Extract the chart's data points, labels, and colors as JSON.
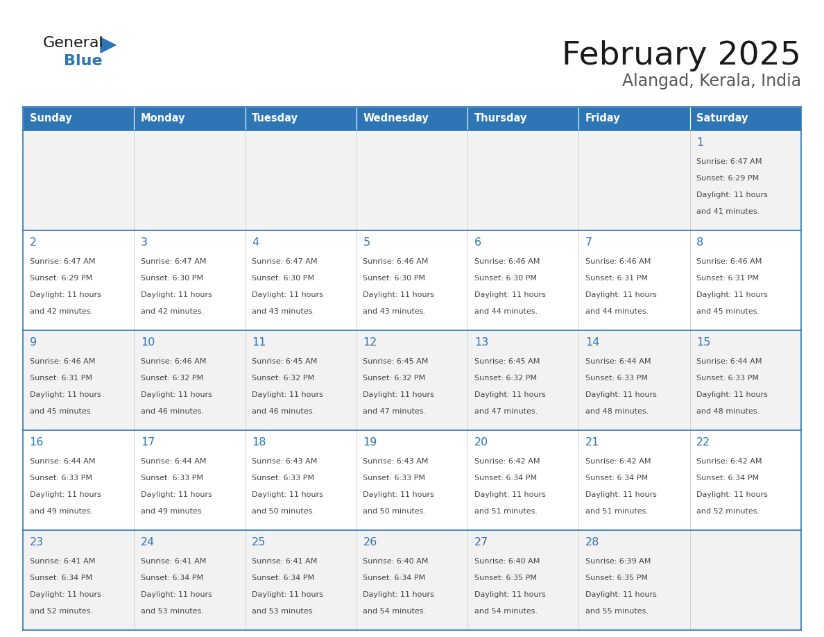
{
  "title": "February 2025",
  "subtitle": "Alangad, Kerala, India",
  "header_bg": "#2E75B6",
  "header_text_color": "#FFFFFF",
  "header_font_size": 10.5,
  "day_names": [
    "Sunday",
    "Monday",
    "Tuesday",
    "Wednesday",
    "Thursday",
    "Friday",
    "Saturday"
  ],
  "title_font_size": 34,
  "subtitle_font_size": 17,
  "cell_bg_odd": "#F2F2F2",
  "cell_bg_even": "#FFFFFF",
  "border_color": "#2E75B6",
  "day_num_color": "#2E75B6",
  "text_color": "#444444",
  "logo_text1_color": "#1a1a1a",
  "logo_text2_color": "#2E75B6",
  "days": [
    {
      "date": 1,
      "col": 6,
      "row": 0,
      "sunrise": "6:47 AM",
      "sunset": "6:29 PM",
      "daylight_h": "11 hours",
      "daylight_m": "41 minutes"
    },
    {
      "date": 2,
      "col": 0,
      "row": 1,
      "sunrise": "6:47 AM",
      "sunset": "6:29 PM",
      "daylight_h": "11 hours",
      "daylight_m": "42 minutes"
    },
    {
      "date": 3,
      "col": 1,
      "row": 1,
      "sunrise": "6:47 AM",
      "sunset": "6:30 PM",
      "daylight_h": "11 hours",
      "daylight_m": "42 minutes"
    },
    {
      "date": 4,
      "col": 2,
      "row": 1,
      "sunrise": "6:47 AM",
      "sunset": "6:30 PM",
      "daylight_h": "11 hours",
      "daylight_m": "43 minutes"
    },
    {
      "date": 5,
      "col": 3,
      "row": 1,
      "sunrise": "6:46 AM",
      "sunset": "6:30 PM",
      "daylight_h": "11 hours",
      "daylight_m": "43 minutes"
    },
    {
      "date": 6,
      "col": 4,
      "row": 1,
      "sunrise": "6:46 AM",
      "sunset": "6:30 PM",
      "daylight_h": "11 hours",
      "daylight_m": "44 minutes"
    },
    {
      "date": 7,
      "col": 5,
      "row": 1,
      "sunrise": "6:46 AM",
      "sunset": "6:31 PM",
      "daylight_h": "11 hours",
      "daylight_m": "44 minutes"
    },
    {
      "date": 8,
      "col": 6,
      "row": 1,
      "sunrise": "6:46 AM",
      "sunset": "6:31 PM",
      "daylight_h": "11 hours",
      "daylight_m": "45 minutes"
    },
    {
      "date": 9,
      "col": 0,
      "row": 2,
      "sunrise": "6:46 AM",
      "sunset": "6:31 PM",
      "daylight_h": "11 hours",
      "daylight_m": "45 minutes"
    },
    {
      "date": 10,
      "col": 1,
      "row": 2,
      "sunrise": "6:46 AM",
      "sunset": "6:32 PM",
      "daylight_h": "11 hours",
      "daylight_m": "46 minutes"
    },
    {
      "date": 11,
      "col": 2,
      "row": 2,
      "sunrise": "6:45 AM",
      "sunset": "6:32 PM",
      "daylight_h": "11 hours",
      "daylight_m": "46 minutes"
    },
    {
      "date": 12,
      "col": 3,
      "row": 2,
      "sunrise": "6:45 AM",
      "sunset": "6:32 PM",
      "daylight_h": "11 hours",
      "daylight_m": "47 minutes"
    },
    {
      "date": 13,
      "col": 4,
      "row": 2,
      "sunrise": "6:45 AM",
      "sunset": "6:32 PM",
      "daylight_h": "11 hours",
      "daylight_m": "47 minutes"
    },
    {
      "date": 14,
      "col": 5,
      "row": 2,
      "sunrise": "6:44 AM",
      "sunset": "6:33 PM",
      "daylight_h": "11 hours",
      "daylight_m": "48 minutes"
    },
    {
      "date": 15,
      "col": 6,
      "row": 2,
      "sunrise": "6:44 AM",
      "sunset": "6:33 PM",
      "daylight_h": "11 hours",
      "daylight_m": "48 minutes"
    },
    {
      "date": 16,
      "col": 0,
      "row": 3,
      "sunrise": "6:44 AM",
      "sunset": "6:33 PM",
      "daylight_h": "11 hours",
      "daylight_m": "49 minutes"
    },
    {
      "date": 17,
      "col": 1,
      "row": 3,
      "sunrise": "6:44 AM",
      "sunset": "6:33 PM",
      "daylight_h": "11 hours",
      "daylight_m": "49 minutes"
    },
    {
      "date": 18,
      "col": 2,
      "row": 3,
      "sunrise": "6:43 AM",
      "sunset": "6:33 PM",
      "daylight_h": "11 hours",
      "daylight_m": "50 minutes"
    },
    {
      "date": 19,
      "col": 3,
      "row": 3,
      "sunrise": "6:43 AM",
      "sunset": "6:33 PM",
      "daylight_h": "11 hours",
      "daylight_m": "50 minutes"
    },
    {
      "date": 20,
      "col": 4,
      "row": 3,
      "sunrise": "6:42 AM",
      "sunset": "6:34 PM",
      "daylight_h": "11 hours",
      "daylight_m": "51 minutes"
    },
    {
      "date": 21,
      "col": 5,
      "row": 3,
      "sunrise": "6:42 AM",
      "sunset": "6:34 PM",
      "daylight_h": "11 hours",
      "daylight_m": "51 minutes"
    },
    {
      "date": 22,
      "col": 6,
      "row": 3,
      "sunrise": "6:42 AM",
      "sunset": "6:34 PM",
      "daylight_h": "11 hours",
      "daylight_m": "52 minutes"
    },
    {
      "date": 23,
      "col": 0,
      "row": 4,
      "sunrise": "6:41 AM",
      "sunset": "6:34 PM",
      "daylight_h": "11 hours",
      "daylight_m": "52 minutes"
    },
    {
      "date": 24,
      "col": 1,
      "row": 4,
      "sunrise": "6:41 AM",
      "sunset": "6:34 PM",
      "daylight_h": "11 hours",
      "daylight_m": "53 minutes"
    },
    {
      "date": 25,
      "col": 2,
      "row": 4,
      "sunrise": "6:41 AM",
      "sunset": "6:34 PM",
      "daylight_h": "11 hours",
      "daylight_m": "53 minutes"
    },
    {
      "date": 26,
      "col": 3,
      "row": 4,
      "sunrise": "6:40 AM",
      "sunset": "6:34 PM",
      "daylight_h": "11 hours",
      "daylight_m": "54 minutes"
    },
    {
      "date": 27,
      "col": 4,
      "row": 4,
      "sunrise": "6:40 AM",
      "sunset": "6:35 PM",
      "daylight_h": "11 hours",
      "daylight_m": "54 minutes"
    },
    {
      "date": 28,
      "col": 5,
      "row": 4,
      "sunrise": "6:39 AM",
      "sunset": "6:35 PM",
      "daylight_h": "11 hours",
      "daylight_m": "55 minutes"
    }
  ]
}
